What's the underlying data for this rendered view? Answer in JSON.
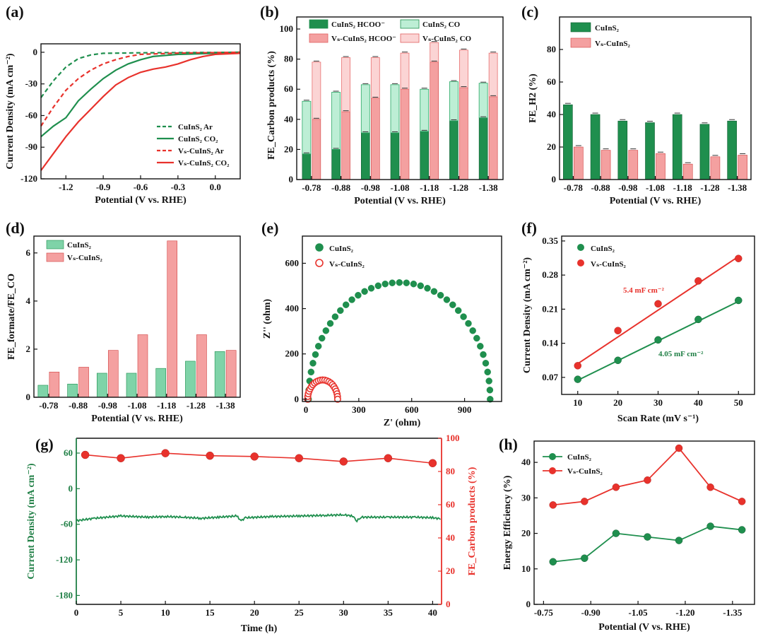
{
  "colors": {
    "green": "#1f8f4e",
    "green_light": "#7fd3a8",
    "green_pale": "#bdeed5",
    "red": "#e8322c",
    "red_light": "#f4a0a0",
    "red_pale": "#fbd4d4",
    "axis_red": "#e8322c",
    "axis_green": "#1f7f45"
  },
  "chart_data": [
    {
      "panel": "(a)",
      "type": "line",
      "xlabel": "Potential (V vs. RHE)",
      "ylabel": "Current Density (mA cm⁻²)",
      "xlim": [
        -1.4,
        0.2
      ],
      "ylim": [
        -120,
        8
      ],
      "xticks": [
        "-1.2",
        "-0.9",
        "-0.6",
        "-0.3",
        "0.0"
      ],
      "xtick_values": [
        -1.2,
        -0.9,
        -0.6,
        -0.3,
        0.0
      ],
      "yticks": [
        "0",
        "-30",
        "-60",
        "-90",
        "-120"
      ],
      "ytick_values": [
        0,
        -30,
        -60,
        -90,
        -120
      ],
      "legend": [
        "CuInS₂ Ar",
        "CuInS₂ CO₂",
        "Vₛ-CuInS₂ Ar",
        "Vₛ-CuInS₂ CO₂"
      ],
      "series": [
        {
          "name": "CuInS₂ Ar",
          "style": "dashed",
          "color": "green",
          "points": [
            [
              -1.4,
              -43
            ],
            [
              -1.3,
              -27
            ],
            [
              -1.2,
              -14
            ],
            [
              -1.1,
              -6
            ],
            [
              -1.0,
              -2.5
            ],
            [
              -0.9,
              -1
            ],
            [
              -0.6,
              -0.5
            ],
            [
              -0.3,
              -0.3
            ],
            [
              0.0,
              -0.2
            ],
            [
              0.2,
              0
            ]
          ]
        },
        {
          "name": "CuInS₂ CO₂",
          "style": "solid",
          "color": "green",
          "points": [
            [
              -1.4,
              -80
            ],
            [
              -1.3,
              -70
            ],
            [
              -1.2,
              -62
            ],
            [
              -1.1,
              -46
            ],
            [
              -1.0,
              -35
            ],
            [
              -0.9,
              -25
            ],
            [
              -0.8,
              -17
            ],
            [
              -0.7,
              -11
            ],
            [
              -0.6,
              -7
            ],
            [
              -0.5,
              -4
            ],
            [
              -0.3,
              -2
            ],
            [
              0.0,
              -1
            ],
            [
              0.2,
              -0.5
            ]
          ]
        },
        {
          "name": "Vₛ-CuInS₂ Ar",
          "style": "dashed",
          "color": "red",
          "points": [
            [
              -1.4,
              -70
            ],
            [
              -1.3,
              -52
            ],
            [
              -1.2,
              -36
            ],
            [
              -1.1,
              -25
            ],
            [
              -1.0,
              -17
            ],
            [
              -0.9,
              -11
            ],
            [
              -0.8,
              -7
            ],
            [
              -0.7,
              -4
            ],
            [
              -0.6,
              -2
            ],
            [
              -0.3,
              -0.8
            ],
            [
              0.0,
              -0.3
            ],
            [
              0.2,
              0
            ]
          ]
        },
        {
          "name": "Vₛ-CuInS₂ CO₂",
          "style": "solid",
          "color": "red",
          "points": [
            [
              -1.4,
              -112
            ],
            [
              -1.3,
              -96
            ],
            [
              -1.2,
              -80
            ],
            [
              -1.1,
              -66
            ],
            [
              -1.0,
              -54
            ],
            [
              -0.9,
              -42
            ],
            [
              -0.8,
              -31
            ],
            [
              -0.7,
              -24
            ],
            [
              -0.6,
              -19
            ],
            [
              -0.5,
              -16
            ],
            [
              -0.4,
              -14
            ],
            [
              -0.3,
              -11
            ],
            [
              -0.2,
              -7
            ],
            [
              -0.1,
              -4
            ],
            [
              0.0,
              -2
            ],
            [
              0.2,
              -1
            ]
          ]
        }
      ]
    },
    {
      "panel": "(b)",
      "type": "bar",
      "xlabel": "Potential (V vs. RHE)",
      "ylabel": "FE_Carbon products (%)",
      "ylim": [
        0,
        108
      ],
      "yticks": [
        "0",
        "20",
        "40",
        "60",
        "80",
        "100"
      ],
      "ytick_values": [
        0,
        20,
        40,
        60,
        80,
        100
      ],
      "categories": [
        "-0.78",
        "-0.88",
        "-0.98",
        "-1.08",
        "-1.18",
        "-1.28",
        "-1.38"
      ],
      "legend": [
        "CuInS₂ HCOO⁻",
        "CuInS₂ CO",
        "Vₛ-CuInS₂ HCOO⁻",
        "Vₛ-CuInS₂ CO"
      ],
      "series": [
        {
          "name": "CuInS₂ HCOO⁻",
          "values": [
            17,
            20,
            31,
            31,
            32,
            39,
            41
          ]
        },
        {
          "name": "CuInS₂ CO",
          "values": [
            35,
            38,
            32,
            32,
            28,
            26,
            23
          ]
        },
        {
          "name": "Vₛ-CuInS₂ HCOO⁻",
          "values": [
            40,
            45,
            54,
            60,
            78,
            61,
            55
          ]
        },
        {
          "name": "Vₛ-CuInS₂ CO",
          "values": [
            38,
            36,
            27,
            24,
            13,
            25,
            29
          ]
        }
      ]
    },
    {
      "panel": "(c)",
      "type": "bar",
      "xlabel": "Potential (V vs. RHE)",
      "ylabel": "FE_H2 (%)",
      "ylim": [
        0,
        100
      ],
      "yticks": [
        "0",
        "20",
        "40",
        "60",
        "80"
      ],
      "ytick_values": [
        0,
        20,
        40,
        60,
        80
      ],
      "categories": [
        "-0.78",
        "-0.88",
        "-0.98",
        "-1.08",
        "-1.18",
        "-1.28",
        "-1.38"
      ],
      "legend": [
        "CuInS₂",
        "Vₛ-CuInS₂"
      ],
      "series": [
        {
          "name": "CuInS₂",
          "values": [
            46,
            40,
            36,
            35,
            40,
            34,
            36
          ]
        },
        {
          "name": "Vₛ-CuInS₂",
          "values": [
            20,
            18,
            18,
            16,
            9.5,
            14,
            15
          ]
        }
      ]
    },
    {
      "panel": "(d)",
      "type": "bar",
      "xlabel": "Potential (V vs. RHE)",
      "ylabel": "FE_formate/FE_CO",
      "ylim": [
        0,
        6.7
      ],
      "yticks": [
        "0",
        "2",
        "4",
        "6"
      ],
      "ytick_values": [
        0,
        2,
        4,
        6
      ],
      "categories": [
        "-0.78",
        "-0.88",
        "-0.98",
        "-1.08",
        "-1.18",
        "-1.28",
        "-1.38"
      ],
      "legend": [
        "CuInS₂",
        "Vₛ-CuInS₂"
      ],
      "series": [
        {
          "name": "CuInS₂",
          "values": [
            0.5,
            0.55,
            1.0,
            1.0,
            1.2,
            1.5,
            1.9
          ]
        },
        {
          "name": "Vₛ-CuInS₂",
          "values": [
            1.05,
            1.25,
            1.95,
            2.6,
            6.5,
            2.6,
            1.95
          ]
        }
      ]
    },
    {
      "panel": "(e)",
      "type": "scatter",
      "xlabel": "Z' (ohm)",
      "ylabel": "Z'' (ohm)",
      "xlim": [
        -20,
        1110
      ],
      "ylim": [
        -10,
        720
      ],
      "xticks": [
        "0",
        "300",
        "600",
        "900"
      ],
      "xtick_values": [
        0,
        300,
        600,
        900
      ],
      "yticks": [
        "0",
        "200",
        "400",
        "600"
      ],
      "ytick_values": [
        0,
        200,
        400,
        600
      ],
      "legend": [
        "CuInS₂",
        "Vₛ-CuInS₂"
      ],
      "series": [
        {
          "name": "CuInS₂",
          "center": 530,
          "radius": 515,
          "count": 40
        },
        {
          "name": "Vₛ-CuInS₂",
          "center": 95,
          "radius": 85,
          "count": 22
        }
      ]
    },
    {
      "panel": "(f)",
      "type": "scatter",
      "xlabel": "Scan Rate (mV s⁻¹)",
      "ylabel": "Current Density (mA cm⁻²)",
      "xlim": [
        6,
        54
      ],
      "ylim": [
        0.035,
        0.36
      ],
      "xticks": [
        "10",
        "20",
        "30",
        "40",
        "50"
      ],
      "xtick_values": [
        10,
        20,
        30,
        40,
        50
      ],
      "yticks": [
        "0.07",
        "0.14",
        "0.21",
        "0.28",
        "0.35"
      ],
      "ytick_values": [
        0.07,
        0.14,
        0.21,
        0.28,
        0.35
      ],
      "legend": [
        "CuInS₂",
        "Vₛ-CuInS₂"
      ],
      "annotations": [
        "5.4 mF cm⁻²",
        "4.05 mF cm⁻²"
      ],
      "series": [
        {
          "name": "CuInS₂",
          "x": [
            10,
            20,
            30,
            40,
            50
          ],
          "y": [
            0.066,
            0.105,
            0.147,
            0.189,
            0.228
          ],
          "fit": [
            [
              10,
              0.064
            ],
            [
              50,
              0.226
            ]
          ]
        },
        {
          "name": "Vₛ-CuInS₂",
          "x": [
            10,
            20,
            30,
            40,
            50
          ],
          "y": [
            0.094,
            0.166,
            0.221,
            0.268,
            0.314
          ],
          "fit": [
            [
              10,
              0.098
            ],
            [
              50,
              0.318
            ]
          ]
        }
      ]
    },
    {
      "panel": "(g)",
      "type": "line",
      "xlabel": "Time (h)",
      "ylabel": "Current Density (mA cm⁻²)",
      "ylabel_right": "FE_Carbon products (%)",
      "xlim": [
        0,
        41
      ],
      "ylim": [
        -195,
        85
      ],
      "ylim_right": [
        0,
        100
      ],
      "xticks": [
        "0",
        "5",
        "10",
        "15",
        "20",
        "25",
        "30",
        "35",
        "40"
      ],
      "xtick_values": [
        0,
        5,
        10,
        15,
        20,
        25,
        30,
        35,
        40
      ],
      "yticks": [
        "60",
        "0",
        "-60",
        "-120",
        "-180"
      ],
      "ytick_values": [
        60,
        0,
        -60,
        -120,
        -180
      ],
      "yticks_right": [
        "0",
        "20",
        "40",
        "60",
        "80",
        "100"
      ],
      "ytick_values_right": [
        0,
        20,
        40,
        60,
        80,
        100
      ],
      "series": [
        {
          "name": "Current Density",
          "axis": "left",
          "points": [
            [
              0,
              -54
            ],
            [
              2,
              -50
            ],
            [
              5,
              -46
            ],
            [
              8,
              -48
            ],
            [
              10,
              -47
            ],
            [
              12,
              -48
            ],
            [
              14,
              -50
            ],
            [
              16,
              -48
            ],
            [
              18,
              -46
            ],
            [
              18.5,
              -54
            ],
            [
              19,
              -49
            ],
            [
              22,
              -47
            ],
            [
              25,
              -46
            ],
            [
              28,
              -45
            ],
            [
              30,
              -44
            ],
            [
              31,
              -46
            ],
            [
              31.5,
              -54
            ],
            [
              32,
              -48
            ],
            [
              35,
              -48
            ],
            [
              38,
              -48
            ],
            [
              40,
              -49
            ],
            [
              41,
              -51
            ]
          ]
        },
        {
          "name": "FE Carbon products",
          "axis": "right",
          "x": [
            1,
            5,
            10,
            15,
            20,
            25,
            30,
            35,
            40
          ],
          "y": [
            90,
            88,
            91,
            89.5,
            89,
            88,
            86,
            88,
            85
          ]
        }
      ]
    },
    {
      "panel": "(h)",
      "type": "line",
      "xlabel": "Potential (V vs. RHE)",
      "ylabel": "Energy Efficiency (%)",
      "xlim": [
        -0.72,
        -1.42
      ],
      "ylim": [
        0,
        46
      ],
      "xticks": [
        "-0.75",
        "-0.90",
        "-1.05",
        "-1.20",
        "-1.35"
      ],
      "xtick_values": [
        -0.75,
        -0.9,
        -1.05,
        -1.2,
        -1.35
      ],
      "yticks": [
        "0",
        "10",
        "20",
        "30",
        "40"
      ],
      "ytick_values": [
        0,
        10,
        20,
        30,
        40
      ],
      "legend": [
        "CuInS₂",
        "Vₛ-CuInS₂"
      ],
      "series": [
        {
          "name": "CuInS₂",
          "x": [
            -0.78,
            -0.88,
            -0.98,
            -1.08,
            -1.18,
            -1.28,
            -1.38
          ],
          "y": [
            12,
            13,
            20,
            19,
            18,
            22,
            21
          ]
        },
        {
          "name": "Vₛ-CuInS₂",
          "x": [
            -0.78,
            -0.88,
            -0.98,
            -1.08,
            -1.18,
            -1.28,
            -1.38
          ],
          "y": [
            28,
            29,
            33,
            35,
            44,
            33,
            29
          ]
        }
      ]
    }
  ]
}
